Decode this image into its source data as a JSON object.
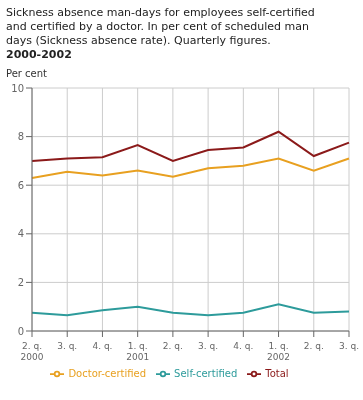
{
  "chart_data": {
    "type": "line",
    "title": "Sickness absence man-days for employees self-certified\nand certified by a doctor. In per cent of scheduled man\ndays (Sickness absence rate). Quarterly figures.",
    "subtitle": "2000-2002",
    "y_label": "Per cent",
    "categories": [
      "2. q.\n2000",
      "3. q.",
      "4. q.",
      "1. q.\n2001",
      "2. q.",
      "3. q.",
      "4. q.",
      "1. q.\n2002",
      "2. q.",
      "3. q."
    ],
    "series": [
      {
        "name": "Total",
        "color": "#8b1a1a",
        "values": [
          7.0,
          7.1,
          7.15,
          7.65,
          7.0,
          7.45,
          7.55,
          8.2,
          7.2,
          7.75
        ]
      },
      {
        "name": "Self-certified",
        "color": "#2d9b9b",
        "values": [
          0.75,
          0.65,
          0.85,
          1.0,
          0.75,
          0.65,
          0.75,
          1.1,
          0.75,
          0.8
        ]
      },
      {
        "name": "Doctor-certified",
        "color": "#e8a020",
        "values": [
          6.3,
          6.55,
          6.4,
          6.6,
          6.35,
          6.7,
          6.8,
          7.1,
          6.6,
          7.1
        ]
      }
    ],
    "ylim": [
      0,
      10
    ],
    "yticks": [
      0,
      2,
      4,
      6,
      8,
      10
    ],
    "grid": true,
    "legend": "bottom"
  }
}
